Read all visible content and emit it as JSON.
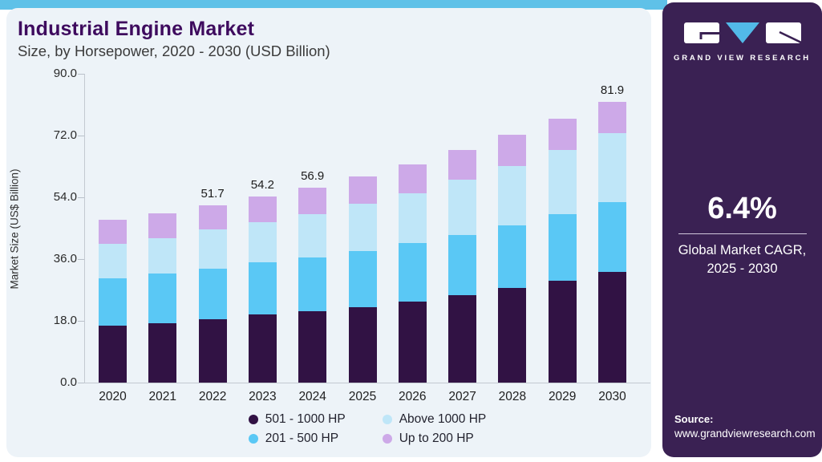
{
  "header": {
    "title": "Industrial Engine Market",
    "subtitle": "Size, by Horsepower, 2020 - 2030 (USD Billion)"
  },
  "chart_data": {
    "type": "bar",
    "stacked": true,
    "title": "Industrial Engine Market",
    "subtitle": "Size, by Horsepower, 2020 - 2030 (USD Billion)",
    "ylabel": "Market Size (US$ Billion)",
    "xlabel": "",
    "ylim": [
      0,
      90
    ],
    "yticks": [
      "0.0",
      "18.0",
      "36.0",
      "54.0",
      "72.0",
      "90.0"
    ],
    "grid": false,
    "legend_position": "bottom",
    "categories": [
      "2020",
      "2021",
      "2022",
      "2023",
      "2024",
      "2025",
      "2026",
      "2027",
      "2028",
      "2029",
      "2030"
    ],
    "series": [
      {
        "name": "501 - 1000 HP",
        "color": "#311244",
        "values": [
          16.6,
          17.3,
          18.5,
          19.8,
          20.8,
          22.0,
          23.7,
          25.4,
          27.5,
          29.6,
          32.2
        ]
      },
      {
        "name": "201 - 500 HP",
        "color": "#5ac8f5",
        "values": [
          13.9,
          14.4,
          14.6,
          15.2,
          15.6,
          16.3,
          16.9,
          17.7,
          18.3,
          19.4,
          20.5
        ]
      },
      {
        "name": "Above 1000 HP",
        "color": "#bfe6f8",
        "values": [
          10.0,
          10.4,
          11.6,
          11.8,
          12.8,
          13.8,
          14.6,
          16.1,
          17.3,
          18.7,
          20.0
        ]
      },
      {
        "name": "Up to 200 HP",
        "color": "#cda9e8",
        "values": [
          6.9,
          7.2,
          7.0,
          7.4,
          7.7,
          8.0,
          8.5,
          8.7,
          9.2,
          9.2,
          9.2
        ]
      }
    ],
    "totals": [
      47.4,
      49.3,
      51.7,
      54.2,
      56.9,
      60.1,
      63.7,
      67.9,
      72.3,
      76.9,
      81.9
    ],
    "bar_value_labels": [
      "",
      "",
      "51.7",
      "54.2",
      "56.9",
      "",
      "",
      "",
      "",
      "",
      "81.9"
    ],
    "legend_order": [
      0,
      2,
      1,
      3
    ]
  },
  "sidebar": {
    "logo_wordmark": "GRAND VIEW RESEARCH",
    "cagr_value": "6.4%",
    "cagr_label_line1": "Global Market CAGR,",
    "cagr_label_line2": "2025 - 2030",
    "source_label": "Source:",
    "source_url": "www.grandviewresearch.com"
  },
  "colors": {
    "top_strip": "#5fc1e8",
    "card_bg": "#edf3f8",
    "sidebar_bg": "#3a2153",
    "title_text": "#3e0b5e",
    "axis_line": "#c3c9d1",
    "logo_triangle": "#52b9e8"
  }
}
